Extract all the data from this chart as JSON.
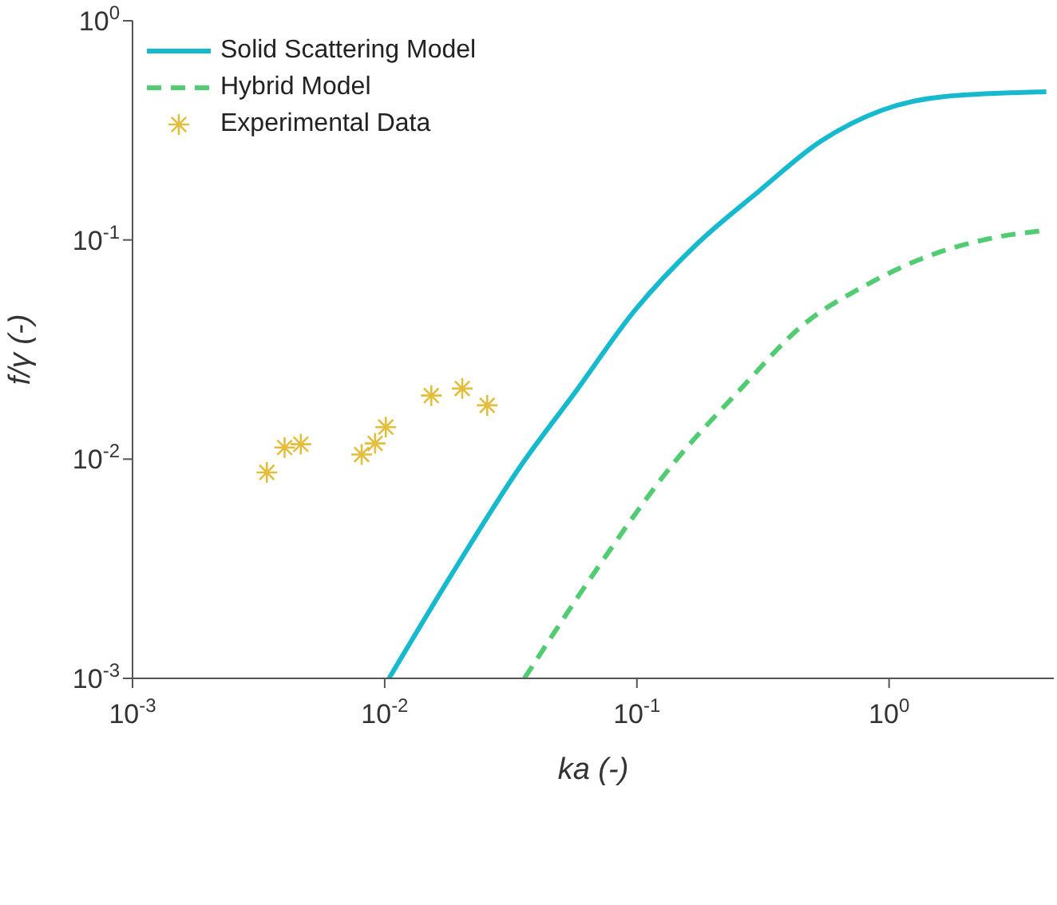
{
  "chart_data": {
    "type": "line",
    "xlabel": "ka (-)",
    "ylabel": "f/γ (-)",
    "log": "xy",
    "xlim": [
      0.001,
      4.5
    ],
    "ylim": [
      0.001,
      1
    ],
    "xticks": [
      {
        "value": 0.001,
        "label": "10$^{-3}$"
      },
      {
        "value": 0.01,
        "label": "10$^{-2}$"
      },
      {
        "value": 0.1,
        "label": "10$^{-1}$"
      },
      {
        "value": 1,
        "label": "10$^{0}$"
      }
    ],
    "yticks": [
      {
        "value": 0.001,
        "label": "10$^{-3}$"
      },
      {
        "value": 0.01,
        "label": "10$^{-2}$"
      },
      {
        "value": 0.1,
        "label": "10$^{-1}$"
      },
      {
        "value": 1,
        "label": "10$^{0}$"
      }
    ],
    "grid": false,
    "legend": "top left",
    "series": [
      {
        "name": "Solid Scattering Model",
        "line_style": "solid",
        "color": "#17b9cf",
        "x": [
          0.0104,
          0.0185,
          0.0348,
          0.0562,
          0.0986,
          0.173,
          0.305,
          0.536,
          0.944,
          1.66,
          4.2
        ],
        "values": [
          0.001,
          0.003,
          0.0094,
          0.0198,
          0.048,
          0.0958,
          0.167,
          0.282,
          0.392,
          0.451,
          0.474
        ]
      },
      {
        "name": "Hybrid Model",
        "line_style": "dashed",
        "color": "#52cc73",
        "x": [
          0.0358,
          0.07,
          0.138,
          0.258,
          0.453,
          0.796,
          1.4,
          2.46,
          3.97
        ],
        "values": [
          0.001,
          0.0032,
          0.0094,
          0.0209,
          0.0407,
          0.0615,
          0.0836,
          0.101,
          0.11
        ]
      },
      {
        "name": "Experimental Data",
        "type": "scatter",
        "marker": "cross",
        "color": "#e3be3c",
        "x": [
          0.00341,
          0.00401,
          0.00465,
          0.0081,
          0.00916,
          0.0101,
          0.0153,
          0.0203,
          0.0255
        ],
        "values": [
          0.0087,
          0.0113,
          0.0117,
          0.0105,
          0.0118,
          0.014,
          0.0195,
          0.021,
          0.0176
        ]
      }
    ]
  }
}
